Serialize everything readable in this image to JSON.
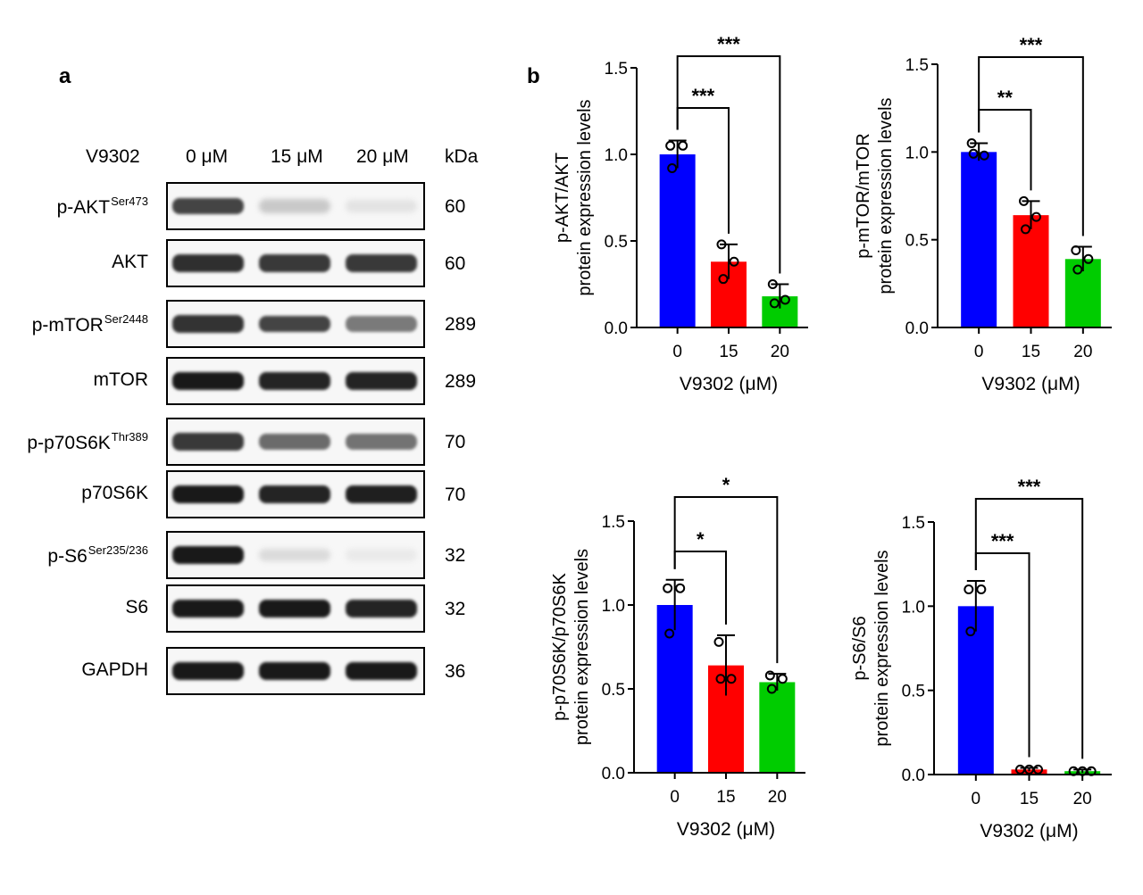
{
  "panel_a": {
    "letter": "a",
    "treatment_label": "V9302",
    "doses": [
      "0 μM",
      "15 μM",
      "20 μM"
    ],
    "kda_header": "kDa",
    "blots": [
      {
        "label": "p-AKT",
        "sup": "Ser473",
        "kda": "60",
        "intensities": [
          0.8,
          0.18,
          0.06
        ]
      },
      {
        "label": "AKT",
        "sup": "",
        "kda": "60",
        "intensities": [
          0.9,
          0.85,
          0.85
        ]
      },
      {
        "label": "p-mTOR",
        "sup": "Ser2448",
        "kda": "289",
        "intensities": [
          0.88,
          0.8,
          0.55
        ]
      },
      {
        "label": "mTOR",
        "sup": "",
        "kda": "289",
        "intensities": [
          1.0,
          0.95,
          0.95
        ]
      },
      {
        "label": "p-p70S6K",
        "sup": "Thr389",
        "kda": "70",
        "intensities": [
          0.85,
          0.62,
          0.58
        ]
      },
      {
        "label": "p70S6K",
        "sup": "",
        "kda": "70",
        "intensities": [
          1.0,
          0.95,
          0.97
        ]
      },
      {
        "label": "p-S6",
        "sup": "Ser235/236",
        "kda": "32",
        "intensities": [
          1.0,
          0.1,
          0.03
        ]
      },
      {
        "label": "S6",
        "sup": "",
        "kda": "32",
        "intensities": [
          1.0,
          1.0,
          0.95
        ]
      },
      {
        "label": "GAPDH",
        "sup": "",
        "kda": "36",
        "intensities": [
          1.0,
          1.0,
          1.0
        ]
      }
    ]
  },
  "panel_b": {
    "letter": "b"
  },
  "colors": {
    "dose_0": "#0000ff",
    "dose_15": "#ff0000",
    "dose_20": "#00cc00",
    "axis": "#000000"
  },
  "chart_data": [
    {
      "type": "bar",
      "categories": [
        "0",
        "15",
        "20"
      ],
      "values": [
        1.0,
        0.38,
        0.18
      ],
      "errors": [
        0.08,
        0.1,
        0.07
      ],
      "points": [
        [
          1.05,
          1.05,
          0.92
        ],
        [
          0.48,
          0.38,
          0.28
        ],
        [
          0.25,
          0.16,
          0.14
        ]
      ],
      "ylabel_line1": "p-AKT/AKT",
      "ylabel_line2": "protein expression levels",
      "xlabel": "V9302 (μM)",
      "ylim": [
        0,
        1.5
      ],
      "yticks": [
        "0.0",
        "0.5",
        "1.0",
        "1.5"
      ],
      "significance": [
        {
          "from": 0,
          "to": 1,
          "label": "***"
        },
        {
          "from": 0,
          "to": 2,
          "label": "***"
        }
      ]
    },
    {
      "type": "bar",
      "categories": [
        "0",
        "15",
        "20"
      ],
      "values": [
        1.0,
        0.64,
        0.39
      ],
      "errors": [
        0.05,
        0.08,
        0.07
      ],
      "points": [
        [
          1.05,
          0.98,
          0.99
        ],
        [
          0.72,
          0.63,
          0.56
        ],
        [
          0.44,
          0.39,
          0.33
        ]
      ],
      "ylabel_line1": "p-mTOR/mTOR",
      "ylabel_line2": "protein expression levels",
      "xlabel": "V9302 (μM)",
      "ylim": [
        0,
        1.5
      ],
      "yticks": [
        "0.0",
        "0.5",
        "1.0",
        "1.5"
      ],
      "significance": [
        {
          "from": 0,
          "to": 1,
          "label": "**"
        },
        {
          "from": 0,
          "to": 2,
          "label": "***"
        }
      ]
    },
    {
      "type": "bar",
      "categories": [
        "0",
        "15",
        "20"
      ],
      "values": [
        1.0,
        0.64,
        0.54
      ],
      "errors": [
        0.15,
        0.18,
        0.05
      ],
      "points": [
        [
          1.1,
          1.1,
          0.83
        ],
        [
          0.78,
          0.56,
          0.56
        ],
        [
          0.58,
          0.56,
          0.5
        ]
      ],
      "ylabel_line1": "p-p70S6K/p70S6K",
      "ylabel_line2": "protein expression levels",
      "xlabel": "V9302 (μM)",
      "ylim": [
        0,
        1.5
      ],
      "yticks": [
        "0.0",
        "0.5",
        "1.0",
        "1.5"
      ],
      "significance": [
        {
          "from": 0,
          "to": 1,
          "label": "*"
        },
        {
          "from": 0,
          "to": 2,
          "label": "*"
        }
      ]
    },
    {
      "type": "bar",
      "categories": [
        "0",
        "15",
        "20"
      ],
      "values": [
        1.0,
        0.03,
        0.02
      ],
      "errors": [
        0.15,
        0.01,
        0.01
      ],
      "points": [
        [
          1.1,
          1.1,
          0.85
        ],
        [
          0.03,
          0.03,
          0.03
        ],
        [
          0.02,
          0.02,
          0.02
        ]
      ],
      "ylabel_line1": "p-S6/S6",
      "ylabel_line2": "protein expression levels",
      "xlabel": "V9302 (μM)",
      "ylim": [
        0,
        1.5
      ],
      "yticks": [
        "0.0",
        "0.5",
        "1.0",
        "1.5"
      ],
      "significance": [
        {
          "from": 0,
          "to": 1,
          "label": "***"
        },
        {
          "from": 0,
          "to": 2,
          "label": "***"
        }
      ]
    }
  ]
}
